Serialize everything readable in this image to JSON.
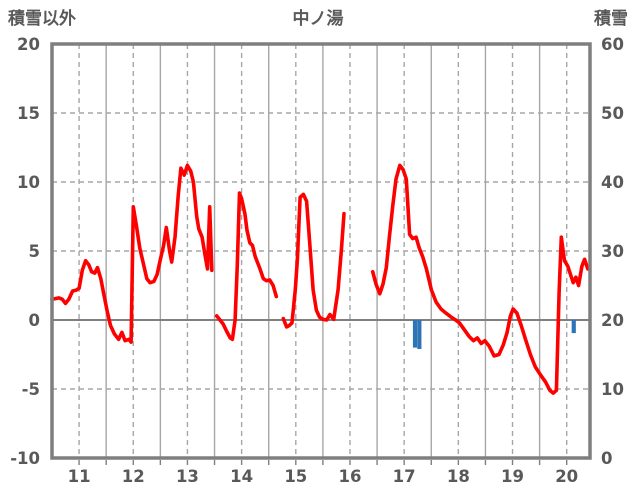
{
  "chart_data": {
    "type": "line",
    "title": "中ノ湯",
    "left_axis": {
      "label": "積雪以外",
      "min": -10,
      "max": 20,
      "ticks": [
        20,
        15,
        10,
        5,
        0,
        -5,
        -10
      ]
    },
    "right_axis": {
      "label": "積雪",
      "min": 0,
      "max": 60,
      "ticks": [
        60,
        50,
        40,
        30,
        20,
        10,
        0
      ]
    },
    "x_axis": {
      "min": 11,
      "max": 20.93,
      "major_gridlines": [
        12,
        13,
        14,
        15,
        16,
        17,
        18,
        19,
        20
      ],
      "minor_gridlines": [
        11.5,
        12.5,
        13.5,
        14.5,
        15.5,
        16.5,
        17.5,
        18.5,
        19.5,
        20.5
      ],
      "tick_labels": [
        {
          "pos": 11.5,
          "label": "11"
        },
        {
          "pos": 12.5,
          "label": "12"
        },
        {
          "pos": 13.5,
          "label": "13"
        },
        {
          "pos": 14.5,
          "label": "14"
        },
        {
          "pos": 15.5,
          "label": "15"
        },
        {
          "pos": 16.5,
          "label": "16"
        },
        {
          "pos": 17.5,
          "label": "17"
        },
        {
          "pos": 18.5,
          "label": "18"
        },
        {
          "pos": 19.5,
          "label": "19"
        },
        {
          "pos": 20.5,
          "label": "20"
        }
      ]
    },
    "grid": {
      "dashed_y": [
        15,
        10,
        5,
        -5
      ],
      "zero_line": 0,
      "legend": "none"
    },
    "series": {
      "name": "積雪以外",
      "color": "#FF0000",
      "segments": [
        [
          [
            11.0,
            1.5
          ],
          [
            11.06,
            1.55
          ],
          [
            11.13,
            1.6
          ],
          [
            11.19,
            1.5
          ],
          [
            11.25,
            1.2
          ],
          [
            11.31,
            1.5
          ],
          [
            11.38,
            2.1
          ],
          [
            11.44,
            2.15
          ],
          [
            11.5,
            2.3
          ],
          [
            11.56,
            3.6
          ],
          [
            11.62,
            4.3
          ],
          [
            11.68,
            4.0
          ],
          [
            11.73,
            3.5
          ],
          [
            11.79,
            3.4
          ],
          [
            11.84,
            3.8
          ],
          [
            11.9,
            3.0
          ],
          [
            11.96,
            1.8
          ],
          [
            12.02,
            0.6
          ],
          [
            12.08,
            -0.4
          ],
          [
            12.15,
            -1.0
          ],
          [
            12.23,
            -1.4
          ],
          [
            12.29,
            -0.9
          ],
          [
            12.35,
            -1.5
          ],
          [
            12.42,
            -1.4
          ],
          [
            12.46,
            -1.6
          ],
          [
            12.5,
            8.2
          ],
          [
            12.56,
            6.8
          ],
          [
            12.62,
            5.2
          ],
          [
            12.68,
            4.2
          ],
          [
            12.75,
            3.0
          ],
          [
            12.81,
            2.7
          ],
          [
            12.88,
            2.8
          ],
          [
            12.94,
            3.3
          ],
          [
            13.0,
            4.4
          ],
          [
            13.06,
            5.4
          ],
          [
            13.11,
            6.7
          ],
          [
            13.17,
            5.0
          ],
          [
            13.21,
            4.2
          ],
          [
            13.27,
            6.0
          ],
          [
            13.33,
            9.0
          ],
          [
            13.38,
            11.0
          ],
          [
            13.44,
            10.5
          ],
          [
            13.5,
            11.2
          ],
          [
            13.56,
            10.8
          ],
          [
            13.61,
            10.0
          ],
          [
            13.67,
            7.5
          ],
          [
            13.71,
            6.6
          ],
          [
            13.77,
            6.0
          ],
          [
            13.82,
            4.8
          ],
          [
            13.87,
            3.7
          ],
          [
            13.91,
            8.2
          ],
          [
            13.95,
            3.6
          ]
        ],
        [
          [
            14.04,
            0.3
          ],
          [
            14.1,
            0.0
          ],
          [
            14.16,
            -0.3
          ],
          [
            14.22,
            -0.8
          ],
          [
            14.29,
            -1.3
          ],
          [
            14.33,
            -1.4
          ],
          [
            14.38,
            0.0
          ],
          [
            14.42,
            4.0
          ],
          [
            14.46,
            9.2
          ],
          [
            14.5,
            8.8
          ],
          [
            14.56,
            7.7
          ],
          [
            14.6,
            6.5
          ],
          [
            14.65,
            5.6
          ],
          [
            14.7,
            5.4
          ],
          [
            14.75,
            4.6
          ],
          [
            14.84,
            3.7
          ],
          [
            14.9,
            3.0
          ],
          [
            14.96,
            2.85
          ],
          [
            15.02,
            2.9
          ],
          [
            15.08,
            2.5
          ],
          [
            15.14,
            1.7
          ]
        ],
        [
          [
            15.27,
            0.1
          ],
          [
            15.33,
            -0.5
          ],
          [
            15.38,
            -0.4
          ],
          [
            15.43,
            -0.2
          ],
          [
            15.49,
            2.2
          ],
          [
            15.53,
            4.4
          ],
          [
            15.58,
            8.9
          ],
          [
            15.64,
            9.1
          ],
          [
            15.7,
            8.6
          ],
          [
            15.76,
            5.4
          ],
          [
            15.82,
            2.2
          ],
          [
            15.88,
            0.7
          ],
          [
            15.94,
            0.2
          ],
          [
            16.0,
            0.05
          ],
          [
            16.07,
            0.0
          ],
          [
            16.13,
            0.4
          ],
          [
            16.2,
            0.05
          ],
          [
            16.28,
            2.2
          ],
          [
            16.34,
            5.0
          ],
          [
            16.39,
            7.7
          ]
        ],
        [
          [
            16.92,
            3.5
          ],
          [
            16.98,
            2.6
          ],
          [
            17.05,
            1.9
          ],
          [
            17.11,
            2.6
          ],
          [
            17.17,
            3.8
          ],
          [
            17.23,
            6.1
          ],
          [
            17.29,
            8.3
          ],
          [
            17.35,
            10.2
          ],
          [
            17.42,
            11.2
          ],
          [
            17.48,
            10.9
          ],
          [
            17.54,
            10.2
          ],
          [
            17.6,
            6.2
          ],
          [
            17.66,
            5.9
          ],
          [
            17.72,
            6.0
          ],
          [
            17.78,
            5.2
          ],
          [
            17.84,
            4.6
          ],
          [
            17.91,
            3.7
          ],
          [
            18.0,
            2.2
          ],
          [
            18.09,
            1.3
          ],
          [
            18.18,
            0.8
          ],
          [
            18.27,
            0.5
          ],
          [
            18.37,
            0.2
          ],
          [
            18.45,
            0.0
          ],
          [
            18.52,
            -0.2
          ],
          [
            18.61,
            -0.7
          ],
          [
            18.7,
            -1.2
          ],
          [
            18.78,
            -1.5
          ],
          [
            18.85,
            -1.3
          ],
          [
            18.92,
            -1.7
          ],
          [
            18.99,
            -1.5
          ],
          [
            19.07,
            -1.9
          ],
          [
            19.16,
            -2.6
          ],
          [
            19.25,
            -2.5
          ],
          [
            19.33,
            -1.8
          ],
          [
            19.4,
            -0.9
          ],
          [
            19.46,
            0.3
          ],
          [
            19.51,
            0.8
          ],
          [
            19.58,
            0.5
          ],
          [
            19.66,
            -0.4
          ],
          [
            19.74,
            -1.4
          ],
          [
            19.83,
            -2.5
          ],
          [
            19.92,
            -3.4
          ],
          [
            20.02,
            -4.0
          ],
          [
            20.11,
            -4.5
          ],
          [
            20.19,
            -5.1
          ],
          [
            20.25,
            -5.3
          ],
          [
            20.31,
            -5.1
          ],
          [
            20.36,
            2.0
          ],
          [
            20.4,
            6.0
          ],
          [
            20.46,
            4.3
          ],
          [
            20.52,
            3.9
          ],
          [
            20.57,
            3.3
          ],
          [
            20.62,
            2.7
          ],
          [
            20.67,
            3.1
          ],
          [
            20.72,
            2.5
          ],
          [
            20.78,
            3.9
          ],
          [
            20.83,
            4.4
          ],
          [
            20.89,
            3.7
          ]
        ]
      ]
    },
    "bars": {
      "name": "積雪",
      "color": "#2E75B6",
      "points": [
        {
          "x": 17.7,
          "y": -2.0
        },
        {
          "x": 17.78,
          "y": -2.1
        },
        {
          "x": 20.63,
          "y": -0.95
        }
      ]
    },
    "colors": {
      "axis": "#7F7F7F",
      "grid": "#A6A6A6",
      "text": "#595959",
      "background": "#FFFFFF"
    }
  }
}
